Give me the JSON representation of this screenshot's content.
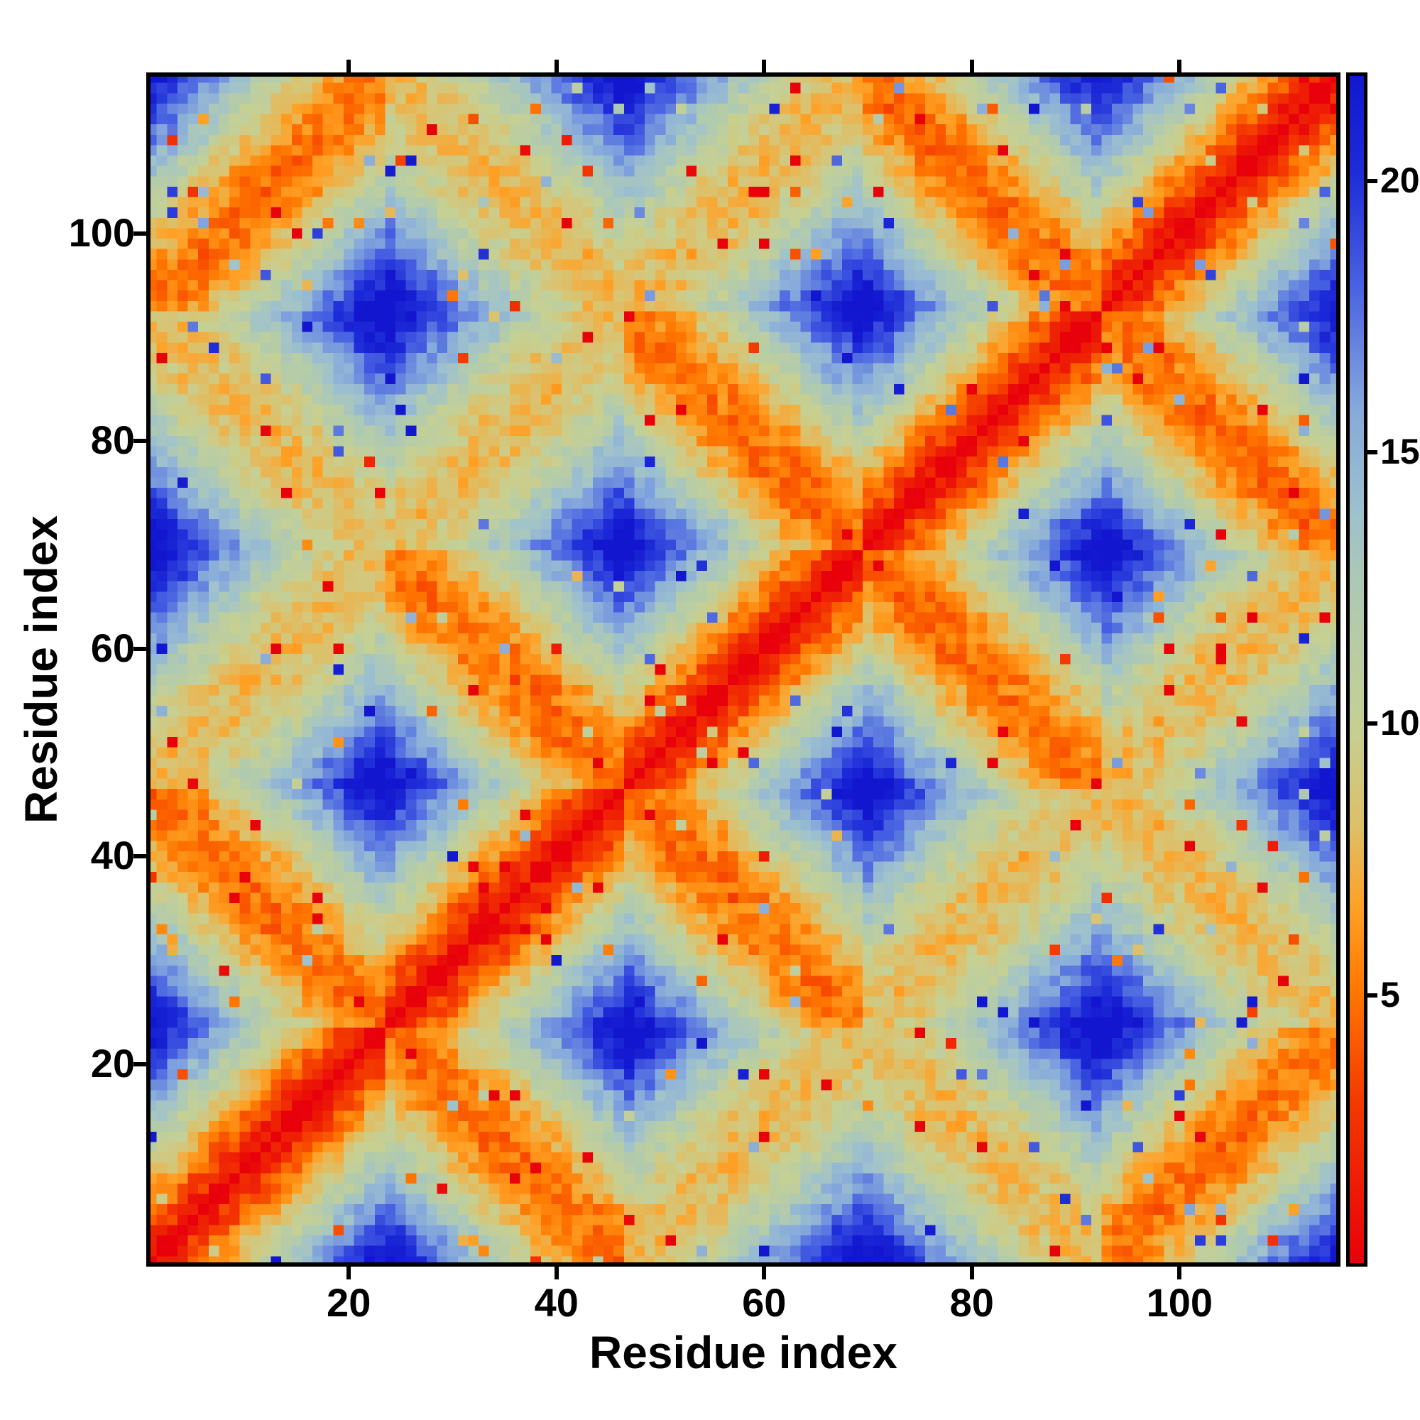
{
  "chart_data": {
    "type": "heatmap",
    "title": "",
    "xlabel": "Residue index",
    "ylabel": "Residue index",
    "n_residues": 115,
    "x_range": [
      1,
      115
    ],
    "y_range": [
      1,
      115
    ],
    "x_ticks": [
      20,
      40,
      60,
      80,
      100
    ],
    "y_ticks": [
      20,
      40,
      60,
      80,
      100
    ],
    "grid": false,
    "colorbar": {
      "position": "right",
      "value_min": 0,
      "value_max": 22,
      "ticks": [
        5,
        10,
        15,
        20
      ]
    },
    "colormap_stops": [
      {
        "t": 0.0,
        "c": "#e8000b"
      },
      {
        "t": 0.14,
        "c": "#f43b00"
      },
      {
        "t": 0.23,
        "c": "#ff7700"
      },
      {
        "t": 0.3,
        "c": "#ffa126"
      },
      {
        "t": 0.37,
        "c": "#ddc06a"
      },
      {
        "t": 0.45,
        "c": "#c6d093"
      },
      {
        "t": 0.55,
        "c": "#b2cbad"
      },
      {
        "t": 0.63,
        "c": "#9fc2cd"
      },
      {
        "t": 0.72,
        "c": "#86a9dc"
      },
      {
        "t": 0.82,
        "c": "#4a63e2"
      },
      {
        "t": 0.92,
        "c": "#1d2bd8"
      },
      {
        "t": 1.0,
        "c": "#1217cf"
      }
    ],
    "matrix_model": {
      "description": "symmetric residue-residue distance matrix with red self-diagonal, antiparallel segment contact stripes and distances capped at the colorbar maximum",
      "segments": 5,
      "segment_length": 23,
      "ring_radius": 4.1,
      "bond_length": 1.0,
      "coordinate_jitter": 0.5,
      "cell_noise": 1.3,
      "spike_probability": 0.03,
      "distance_cap": 22,
      "random_seed": 20
    }
  }
}
